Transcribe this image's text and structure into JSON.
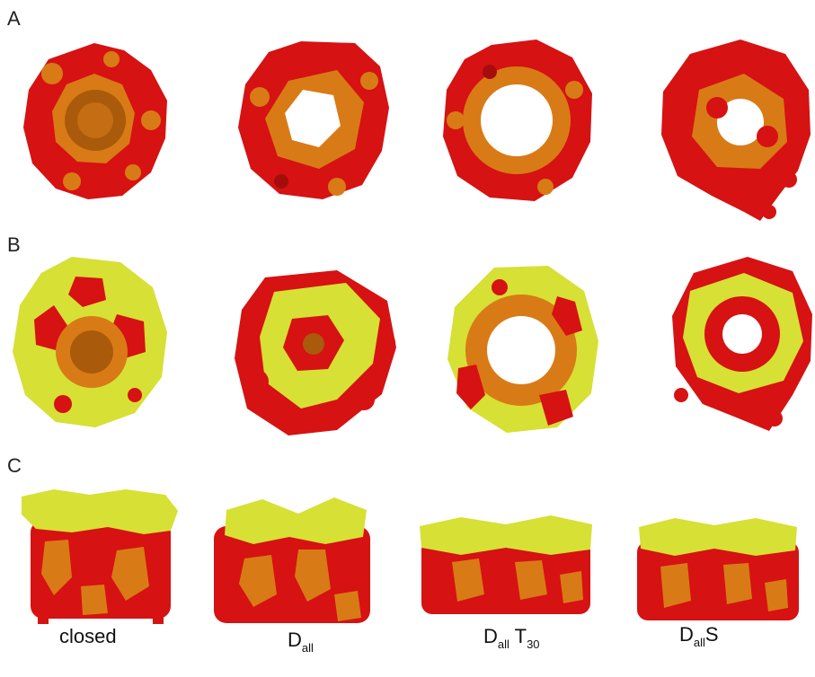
{
  "figure": {
    "panels": [
      {
        "letter": "A"
      },
      {
        "letter": "B"
      },
      {
        "letter": "C"
      }
    ],
    "captions": [
      {
        "base": "closed",
        "sub1": "",
        "mid": "",
        "sub2": ""
      },
      {
        "base": "D",
        "sub1": "all",
        "mid": "",
        "sub2": ""
      },
      {
        "base": "D",
        "sub1": "all",
        "mid": " T",
        "sub2": "30"
      },
      {
        "base": "D",
        "sub1": "all",
        "mid": "S",
        "sub2": ""
      }
    ]
  },
  "colors": {
    "red": "#d61212",
    "dark_red": "#a50d0d",
    "orange": "#d87b16",
    "dark_orange": "#a95a0a",
    "yellow": "#d7e034",
    "dark_yellow": "#a9b01e",
    "background": "#ffffff"
  }
}
